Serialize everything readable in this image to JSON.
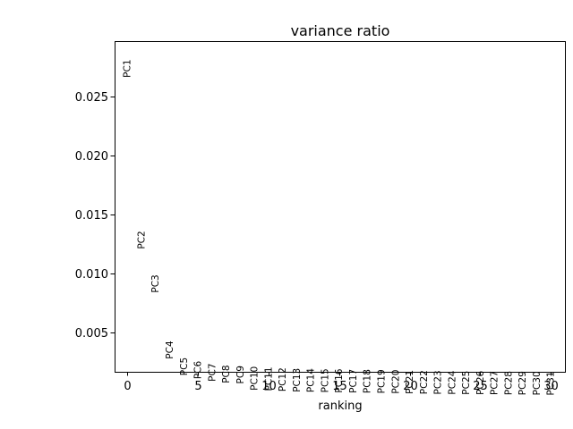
{
  "chart_data": {
    "type": "scatter",
    "title": "variance ratio",
    "xlabel": "ranking",
    "ylabel": "",
    "xlim": [
      -0.9,
      31.0
    ],
    "ylim": [
      0.00168,
      0.02965
    ],
    "xticks": [
      0,
      5,
      10,
      15,
      20,
      25,
      30
    ],
    "xtick_labels": [
      "0",
      "5",
      "10",
      "15",
      "20",
      "25",
      "30"
    ],
    "yticks": [
      0.005,
      0.01,
      0.015,
      0.02,
      0.025
    ],
    "ytick_labels": [
      "0.005",
      "0.010",
      "0.015",
      "0.020",
      "0.025"
    ],
    "grid": false,
    "points": [
      {
        "x": 0,
        "y": 0.0281,
        "label": "PC1"
      },
      {
        "x": 1,
        "y": 0.0136,
        "label": "PC2"
      },
      {
        "x": 2,
        "y": 0.0099,
        "label": "PC3"
      },
      {
        "x": 3,
        "y": 0.0043,
        "label": "PC4"
      },
      {
        "x": 4,
        "y": 0.0029,
        "label": "PC5"
      },
      {
        "x": 5,
        "y": 0.0026,
        "label": "PC6"
      },
      {
        "x": 6,
        "y": 0.0024,
        "label": "PC7"
      },
      {
        "x": 7,
        "y": 0.00225,
        "label": "PC8"
      },
      {
        "x": 8,
        "y": 0.0022,
        "label": "PC9"
      },
      {
        "x": 9,
        "y": 0.00215,
        "label": "PC10"
      },
      {
        "x": 10,
        "y": 0.0021,
        "label": "PC11"
      },
      {
        "x": 11,
        "y": 0.00205,
        "label": "PC12"
      },
      {
        "x": 12,
        "y": 0.002,
        "label": "PC13"
      },
      {
        "x": 13,
        "y": 0.00198,
        "label": "PC14"
      },
      {
        "x": 14,
        "y": 0.00196,
        "label": "PC15"
      },
      {
        "x": 15,
        "y": 0.00194,
        "label": "PC16"
      },
      {
        "x": 16,
        "y": 0.00192,
        "label": "PC17"
      },
      {
        "x": 17,
        "y": 0.0019,
        "label": "PC18"
      },
      {
        "x": 18,
        "y": 0.00188,
        "label": "PC19"
      },
      {
        "x": 19,
        "y": 0.00186,
        "label": "PC20"
      },
      {
        "x": 20,
        "y": 0.00184,
        "label": "PC21"
      },
      {
        "x": 21,
        "y": 0.00182,
        "label": "PC22"
      },
      {
        "x": 22,
        "y": 0.0018,
        "label": "PC23"
      },
      {
        "x": 23,
        "y": 0.00179,
        "label": "PC24"
      },
      {
        "x": 24,
        "y": 0.00178,
        "label": "PC25"
      },
      {
        "x": 25,
        "y": 0.00177,
        "label": "PC26"
      },
      {
        "x": 26,
        "y": 0.00176,
        "label": "PC27"
      },
      {
        "x": 27,
        "y": 0.00175,
        "label": "PC28"
      },
      {
        "x": 28,
        "y": 0.00174,
        "label": "PC29"
      },
      {
        "x": 29,
        "y": 0.00173,
        "label": "PC30"
      },
      {
        "x": 30,
        "y": 0.00172,
        "label": "PC31"
      }
    ]
  }
}
